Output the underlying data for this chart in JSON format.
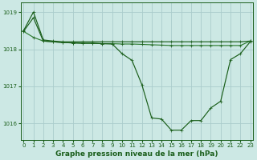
{
  "background_color": "#cce8e4",
  "grid_color": "#aacccc",
  "line_color_dark": "#1a5e1a",
  "line_color_mid": "#2e7d32",
  "xlabel": "Graphe pression niveau de la mer (hPa)",
  "xlabel_fontsize": 6.5,
  "ylim": [
    1015.55,
    1019.25
  ],
  "xlim": [
    -0.3,
    23.3
  ],
  "yticks": [
    1016,
    1017,
    1018,
    1019
  ],
  "xticks": [
    0,
    1,
    2,
    3,
    4,
    5,
    6,
    7,
    8,
    9,
    10,
    11,
    12,
    13,
    14,
    15,
    16,
    17,
    18,
    19,
    20,
    21,
    22,
    23
  ],
  "series1_x": [
    0,
    1,
    2,
    3,
    4,
    5,
    6,
    7,
    8,
    9,
    10,
    11,
    12,
    13,
    14,
    15,
    16,
    17,
    18,
    19,
    20,
    21,
    22,
    23
  ],
  "series1_y": [
    1018.5,
    1019.0,
    1018.25,
    1018.22,
    1018.2,
    1018.2,
    1018.2,
    1018.2,
    1018.2,
    1018.2,
    1018.2,
    1018.2,
    1018.2,
    1018.2,
    1018.2,
    1018.2,
    1018.2,
    1018.2,
    1018.2,
    1018.2,
    1018.2,
    1018.2,
    1018.2,
    1018.22
  ],
  "series2_x": [
    0,
    1,
    2,
    3,
    4,
    5,
    6,
    7,
    8,
    9,
    10,
    11,
    12,
    13,
    14,
    15,
    16,
    17,
    18,
    19,
    20,
    21,
    22,
    23
  ],
  "series2_y": [
    1018.48,
    1018.32,
    1018.22,
    1018.2,
    1018.18,
    1018.17,
    1018.16,
    1018.16,
    1018.15,
    1018.15,
    1018.14,
    1018.14,
    1018.13,
    1018.12,
    1018.11,
    1018.1,
    1018.1,
    1018.1,
    1018.1,
    1018.1,
    1018.1,
    1018.1,
    1018.1,
    1018.22
  ],
  "series3_x": [
    0,
    1,
    2,
    3,
    4,
    5,
    6,
    7,
    8,
    9,
    10,
    11,
    12,
    13,
    14,
    15,
    16,
    17,
    18,
    19,
    20,
    21,
    22,
    23
  ],
  "series3_y": [
    1018.48,
    1018.85,
    1018.22,
    1018.2,
    1018.18,
    1018.17,
    1018.16,
    1018.16,
    1018.15,
    1018.14,
    1017.88,
    1017.7,
    1017.05,
    1016.15,
    1016.12,
    1015.82,
    1015.82,
    1016.08,
    1016.08,
    1016.42,
    1016.6,
    1017.72,
    1017.88,
    1018.2
  ]
}
